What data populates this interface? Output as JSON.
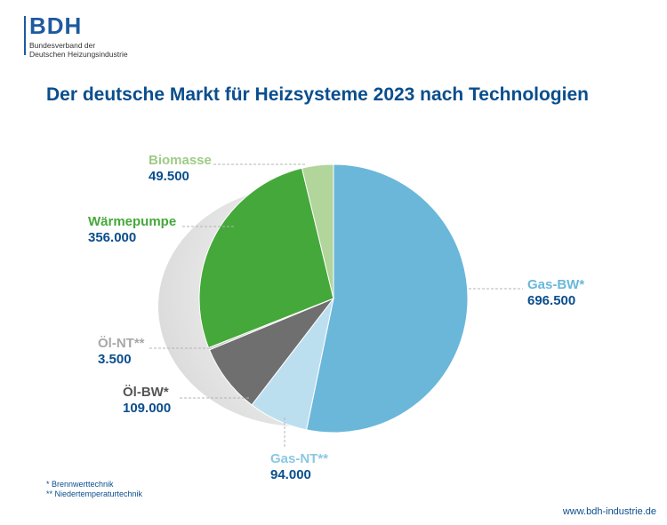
{
  "logo": {
    "mark": "BDH",
    "line1": "Bundesverband der",
    "line2": "Deutschen Heizungsindustrie"
  },
  "chart_data": {
    "type": "pie",
    "title": "Der deutsche Markt für Heizsysteme 2023 nach Technologien",
    "slices": [
      {
        "name": "Gas-BW*",
        "value": 696500,
        "value_label": "696.500",
        "color": "#6ab7da",
        "name_color": "#6ab7da"
      },
      {
        "name": "Gas-NT**",
        "value": 94000,
        "value_label": "94.000",
        "color": "#bcdff0",
        "name_color": "#8cc7e3"
      },
      {
        "name": "Öl-BW*",
        "value": 109000,
        "value_label": "109.000",
        "color": "#6f6f6f",
        "name_color": "#555555"
      },
      {
        "name": "Öl-NT**",
        "value": 3500,
        "value_label": "3.500",
        "color": "#c8c8c8",
        "name_color": "#a8a8a8"
      },
      {
        "name": "Wärmepumpe",
        "value": 356000,
        "value_label": "356.000",
        "color": "#45a83a",
        "name_color": "#45a83a"
      },
      {
        "name": "Biomasse",
        "value": 49500,
        "value_label": "49.500",
        "color": "#b1d59a",
        "name_color": "#9fcb86"
      }
    ]
  },
  "footnotes": [
    "* Brennwerttechnik",
    "** Niedertemperaturtechnik"
  ],
  "url": "www.bdh-industrie.de"
}
